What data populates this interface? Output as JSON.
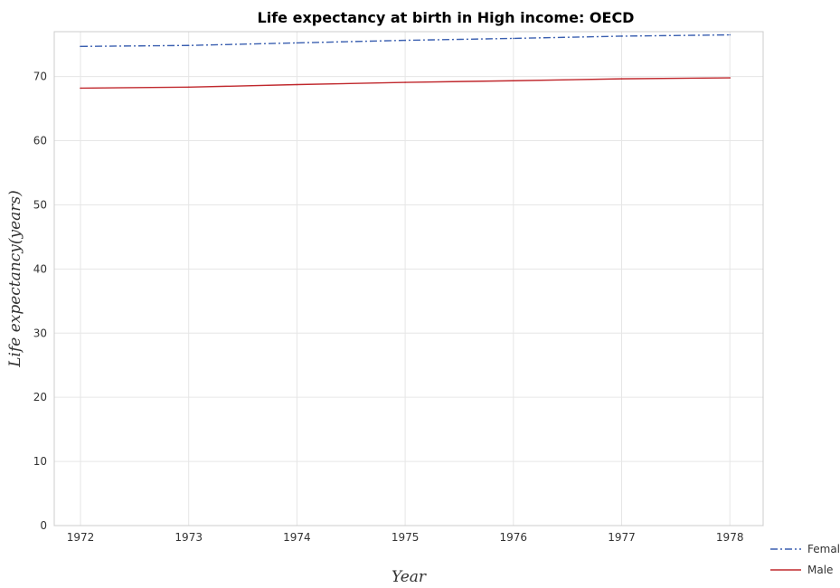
{
  "chart_data": {
    "type": "line",
    "title": "Life expectancy at birth in High income: OECD",
    "xlabel": "Year",
    "ylabel": "Life expectancy(years)",
    "categories": [
      "1972",
      "1973",
      "1974",
      "1975",
      "1976",
      "1977",
      "1978"
    ],
    "ylim": [
      0,
      77
    ],
    "yticks": [
      0,
      10,
      20,
      30,
      40,
      50,
      60,
      70
    ],
    "grid": true,
    "legend_position": "bottom-right",
    "series": [
      {
        "name": "Female",
        "color": "#3a5fb0",
        "dash": "dashdot",
        "values": [
          74.7,
          74.85,
          75.25,
          75.65,
          75.95,
          76.3,
          76.5
        ]
      },
      {
        "name": "Male",
        "color": "#c0282d",
        "dash": "solid",
        "values": [
          68.2,
          68.35,
          68.75,
          69.1,
          69.35,
          69.65,
          69.8
        ]
      }
    ]
  }
}
